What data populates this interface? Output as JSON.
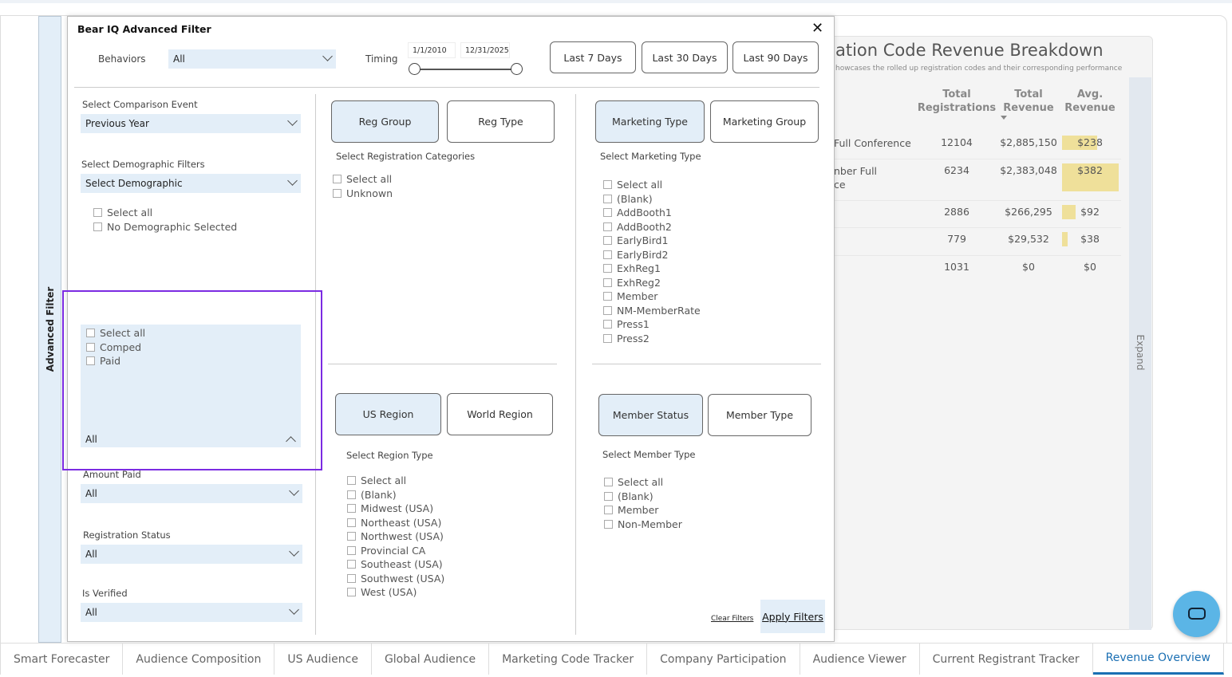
{
  "sidebar": {
    "label": "Advanced Filter"
  },
  "report": {
    "title": "ation Code Revenue Breakdown",
    "subtitle": "howcases the rolled up registration codes and their corresponding performance",
    "headers": [
      "Total\nRegistrations",
      "Total\nRevenue",
      "Avg.\nRevenue"
    ],
    "rows": [
      {
        "name": "Full Conference",
        "regs": "12104",
        "rev": "$2,885,150",
        "avg": "$238",
        "avg_value": 238
      },
      {
        "name": "nber Full\nce",
        "regs": "6234",
        "rev": "$2,383,048",
        "avg": "$382",
        "avg_value": 382
      },
      {
        "name": "",
        "regs": "2886",
        "rev": "$266,295",
        "avg": "$92",
        "avg_value": 92
      },
      {
        "name": "",
        "regs": "779",
        "rev": "$29,532",
        "avg": "$38",
        "avg_value": 38
      },
      {
        "name": "",
        "regs": "1031",
        "rev": "$0",
        "avg": "$0",
        "avg_value": 0
      }
    ],
    "expand": "Expand",
    "bar_color": "#efe09a"
  },
  "modal": {
    "title": "Bear IQ Advanced Filter",
    "close": "✕",
    "behaviors_label": "Behaviors",
    "behaviors_value": "All",
    "timing_label": "Timing",
    "date_start": "1/1/2010",
    "date_end": "12/31/2025",
    "quick": [
      "Last 7 Days",
      "Last 30 Days",
      "Last 90 Days"
    ],
    "comparison_label": "Select Comparison Event",
    "comparison_value": "Previous Year",
    "demo_label": "Select Demographic Filters",
    "demo_value": "Select Demographic",
    "demo_items": [
      "Select all",
      "No Demographic Selected"
    ],
    "open_items": [
      "Select all",
      "Comped",
      "Paid"
    ],
    "open_value": "All",
    "amount_label": "Amount Paid",
    "amount_value": "All",
    "status_label": "Registration Status",
    "status_value": "All",
    "verified_label": "Is Verified",
    "verified_value": "All",
    "reg_tabs": [
      "Reg Group",
      "Reg Type"
    ],
    "reg_label": "Select Registration Categories",
    "reg_items": [
      "Select all",
      "Unknown"
    ],
    "mkt_tabs": [
      "Marketing Type",
      "Marketing Group"
    ],
    "mkt_label": "Select Marketing Type",
    "mkt_items": [
      "Select all",
      "(Blank)",
      "AddBooth1",
      "AddBooth2",
      "EarlyBird1",
      "EarlyBird2",
      "ExhReg1",
      "ExhReg2",
      "Member",
      "NM-MemberRate",
      "Press1",
      "Press2"
    ],
    "region_tabs": [
      "US Region",
      "World Region"
    ],
    "region_label": "Select Region Type",
    "region_items": [
      "Select all",
      "(Blank)",
      "Midwest (USA)",
      "Northeast (USA)",
      "Northwest (USA)",
      "Provincial CA",
      "Southeast (USA)",
      "Southwest (USA)",
      "West (USA)"
    ],
    "member_tabs": [
      "Member Status",
      "Member Type"
    ],
    "member_label": "Select Member Type",
    "member_items": [
      "Select all",
      "(Blank)",
      "Member",
      "Non-Member"
    ],
    "clear": "Clear Filters",
    "apply": "Apply Filters"
  },
  "tabs": [
    "Smart Forecaster",
    "Audience Composition",
    "US Audience",
    "Global Audience",
    "Marketing Code Tracker",
    "Company Participation",
    "Audience Viewer",
    "Current Registrant Tracker",
    "Revenue Overview"
  ],
  "active_tab": "Revenue Overview",
  "more": "···",
  "highlight_color": "#7b2be2"
}
